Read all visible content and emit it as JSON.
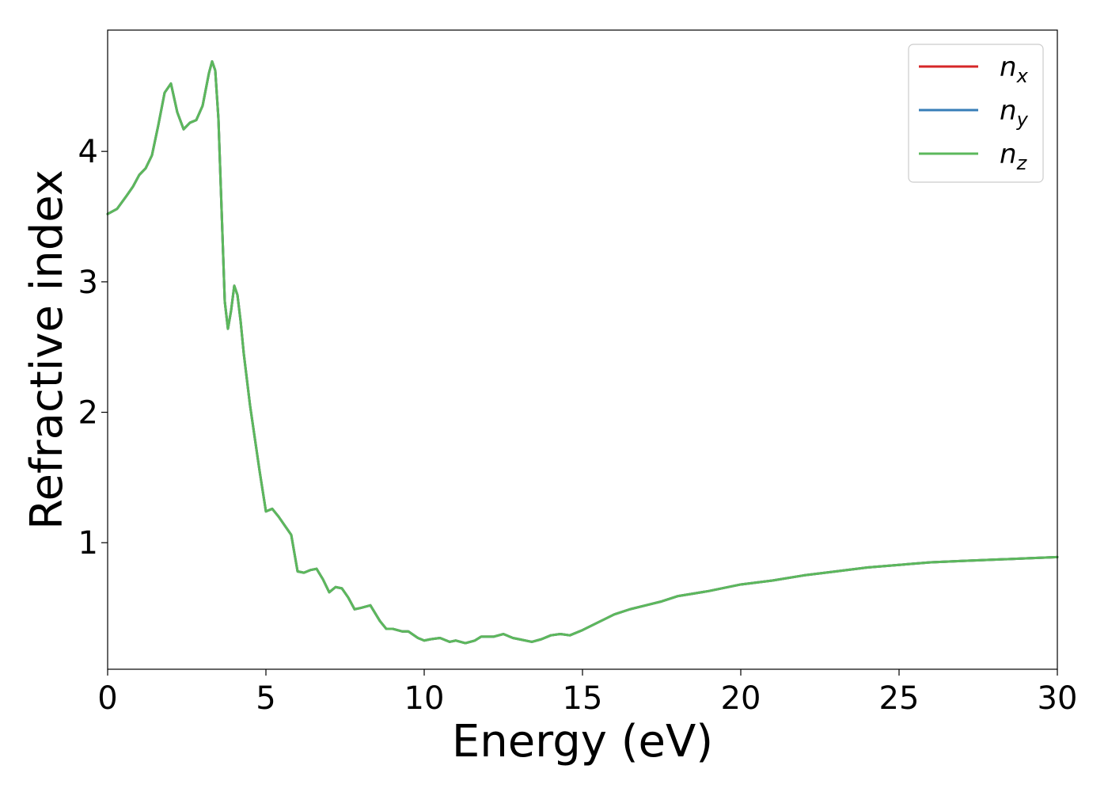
{
  "chart_data": {
    "type": "line",
    "title": "",
    "xlabel": "Energy (eV)",
    "ylabel": "Refractive index",
    "xlim": [
      0,
      30
    ],
    "ylim": [
      0.03,
      4.93
    ],
    "xticks": [
      0,
      5,
      10,
      15,
      20,
      25,
      30
    ],
    "yticks": [
      1,
      2,
      3,
      4
    ],
    "grid": false,
    "legend_position": "top-right",
    "x": [
      0.0,
      0.3,
      0.6,
      0.8,
      1.0,
      1.2,
      1.4,
      1.6,
      1.8,
      2.0,
      2.2,
      2.4,
      2.6,
      2.8,
      3.0,
      3.2,
      3.3,
      3.4,
      3.5,
      3.6,
      3.7,
      3.8,
      3.9,
      4.0,
      4.1,
      4.2,
      4.3,
      4.5,
      4.8,
      5.0,
      5.2,
      5.4,
      5.6,
      5.8,
      6.0,
      6.2,
      6.4,
      6.6,
      6.8,
      7.0,
      7.2,
      7.4,
      7.6,
      7.8,
      8.0,
      8.3,
      8.6,
      8.8,
      9.0,
      9.3,
      9.5,
      9.8,
      10.0,
      10.2,
      10.5,
      10.8,
      11.0,
      11.3,
      11.6,
      11.8,
      12.0,
      12.2,
      12.5,
      12.8,
      13.0,
      13.4,
      13.7,
      14.0,
      14.3,
      14.6,
      15.0,
      15.5,
      16.0,
      16.5,
      17.0,
      17.5,
      18.0,
      18.5,
      19.0,
      20.0,
      21.0,
      22.0,
      23.0,
      24.0,
      25.0,
      26.0,
      27.0,
      28.0,
      29.0,
      30.0
    ],
    "series": [
      {
        "name": "n_x",
        "legend_label": "x",
        "color": "#d62728",
        "values": [
          3.52,
          3.56,
          3.66,
          3.73,
          3.82,
          3.87,
          3.97,
          4.2,
          4.45,
          4.52,
          4.3,
          4.17,
          4.22,
          4.24,
          4.35,
          4.6,
          4.69,
          4.62,
          4.25,
          3.55,
          2.85,
          2.64,
          2.78,
          2.97,
          2.9,
          2.7,
          2.45,
          2.05,
          1.55,
          1.24,
          1.26,
          1.2,
          1.13,
          1.06,
          0.78,
          0.77,
          0.79,
          0.8,
          0.72,
          0.62,
          0.66,
          0.65,
          0.58,
          0.49,
          0.5,
          0.52,
          0.4,
          0.34,
          0.34,
          0.32,
          0.32,
          0.27,
          0.25,
          0.26,
          0.27,
          0.24,
          0.25,
          0.23,
          0.25,
          0.28,
          0.28,
          0.28,
          0.3,
          0.27,
          0.26,
          0.24,
          0.26,
          0.29,
          0.3,
          0.29,
          0.33,
          0.39,
          0.45,
          0.49,
          0.52,
          0.55,
          0.59,
          0.61,
          0.63,
          0.68,
          0.71,
          0.75,
          0.78,
          0.81,
          0.83,
          0.85,
          0.86,
          0.87,
          0.88,
          0.89
        ]
      },
      {
        "name": "n_y",
        "legend_label": "y",
        "color": "#377eb8",
        "values": [
          3.52,
          3.56,
          3.66,
          3.73,
          3.82,
          3.87,
          3.97,
          4.2,
          4.45,
          4.52,
          4.3,
          4.17,
          4.22,
          4.24,
          4.35,
          4.6,
          4.69,
          4.62,
          4.25,
          3.55,
          2.85,
          2.64,
          2.78,
          2.97,
          2.9,
          2.7,
          2.45,
          2.05,
          1.55,
          1.24,
          1.26,
          1.2,
          1.13,
          1.06,
          0.78,
          0.77,
          0.79,
          0.8,
          0.72,
          0.62,
          0.66,
          0.65,
          0.58,
          0.49,
          0.5,
          0.52,
          0.4,
          0.34,
          0.34,
          0.32,
          0.32,
          0.27,
          0.25,
          0.26,
          0.27,
          0.24,
          0.25,
          0.23,
          0.25,
          0.28,
          0.28,
          0.28,
          0.3,
          0.27,
          0.26,
          0.24,
          0.26,
          0.29,
          0.3,
          0.29,
          0.33,
          0.39,
          0.45,
          0.49,
          0.52,
          0.55,
          0.59,
          0.61,
          0.63,
          0.68,
          0.71,
          0.75,
          0.78,
          0.81,
          0.83,
          0.85,
          0.86,
          0.87,
          0.88,
          0.89
        ]
      },
      {
        "name": "n_z",
        "legend_label": "z",
        "color": "#5cb85c",
        "values": [
          3.52,
          3.56,
          3.66,
          3.73,
          3.82,
          3.87,
          3.97,
          4.2,
          4.45,
          4.52,
          4.3,
          4.17,
          4.22,
          4.24,
          4.35,
          4.6,
          4.69,
          4.62,
          4.25,
          3.55,
          2.85,
          2.64,
          2.78,
          2.97,
          2.9,
          2.7,
          2.45,
          2.05,
          1.55,
          1.24,
          1.26,
          1.2,
          1.13,
          1.06,
          0.78,
          0.77,
          0.79,
          0.8,
          0.72,
          0.62,
          0.66,
          0.65,
          0.58,
          0.49,
          0.5,
          0.52,
          0.4,
          0.34,
          0.34,
          0.32,
          0.32,
          0.27,
          0.25,
          0.26,
          0.27,
          0.24,
          0.25,
          0.23,
          0.25,
          0.28,
          0.28,
          0.28,
          0.3,
          0.27,
          0.26,
          0.24,
          0.26,
          0.29,
          0.3,
          0.29,
          0.33,
          0.39,
          0.45,
          0.49,
          0.52,
          0.55,
          0.59,
          0.61,
          0.63,
          0.68,
          0.71,
          0.75,
          0.78,
          0.81,
          0.83,
          0.85,
          0.86,
          0.87,
          0.88,
          0.89
        ]
      }
    ]
  }
}
